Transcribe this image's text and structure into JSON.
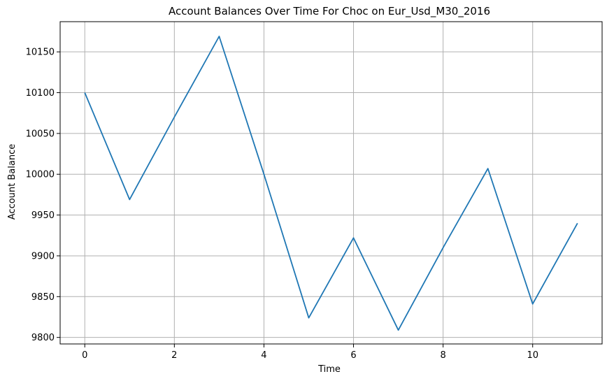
{
  "chart_data": {
    "type": "line",
    "title": "Account Balances Over Time For Choc on Eur_Usd_M30_2016",
    "xlabel": "Time",
    "ylabel": "Account Balance",
    "xlim": [
      -0.55,
      11.55
    ],
    "ylim": [
      9792,
      10187
    ],
    "xticks": [
      0,
      2,
      4,
      6,
      8,
      10
    ],
    "yticks": [
      9800,
      9850,
      9900,
      9950,
      10000,
      10050,
      10100,
      10150
    ],
    "grid": true,
    "series": [
      {
        "color": "#1f77b4",
        "x": [
          0,
          1,
          2,
          3,
          4,
          5,
          6,
          7,
          8,
          9,
          10,
          11
        ],
        "y": [
          10100,
          9969,
          10070,
          10169,
          10000,
          9824,
          9922,
          9809,
          9910,
          10007,
          9841,
          9940
        ]
      }
    ]
  }
}
